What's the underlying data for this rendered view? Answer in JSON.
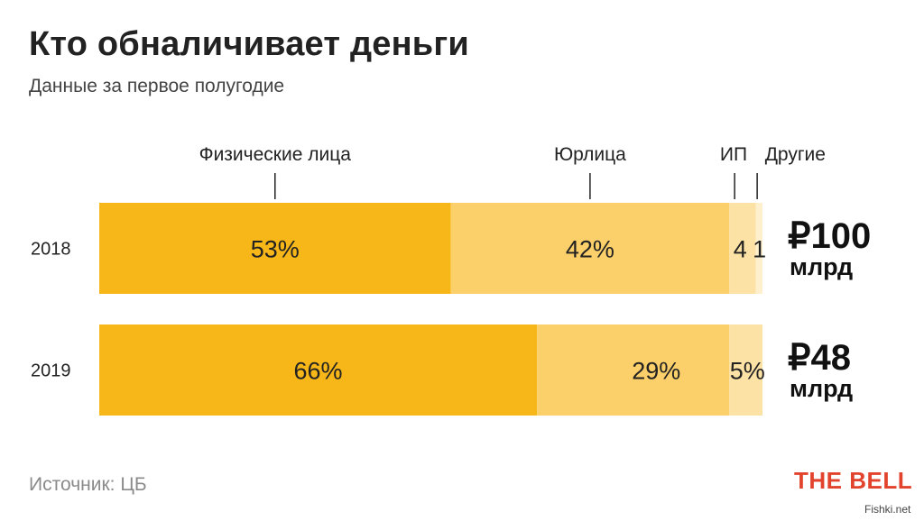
{
  "title": "Кто обналичивает деньги",
  "subtitle": "Данные за первое полугодие",
  "source": "Источник: ЦБ",
  "brand": "THE BELL",
  "watermark": "Fishki.net",
  "colors": {
    "fiz": "#f8b719",
    "yur": "#fbd06a",
    "ip": "#fde2a5",
    "other": "#fef0cc"
  },
  "chart_data": {
    "type": "bar",
    "orientation": "horizontal",
    "stacked": true,
    "unit": "%",
    "categories": [
      "2018",
      "2019"
    ],
    "series": [
      {
        "name": "Физические лица",
        "values": [
          53,
          66
        ],
        "labels": [
          "53%",
          "66%"
        ]
      },
      {
        "name": "Юрлица",
        "values": [
          42,
          29
        ],
        "labels": [
          "42%",
          "29%"
        ]
      },
      {
        "name": "ИП",
        "values": [
          4,
          5
        ],
        "labels": [
          "4",
          "5%"
        ]
      },
      {
        "name": "Другие",
        "values": [
          1,
          0
        ],
        "labels": [
          "1",
          ""
        ]
      }
    ],
    "totals": [
      {
        "amount": "₽100",
        "unit": "млрд"
      },
      {
        "amount": "₽48",
        "unit": "млрд"
      }
    ],
    "xlim": [
      0,
      100
    ],
    "grid": false
  }
}
